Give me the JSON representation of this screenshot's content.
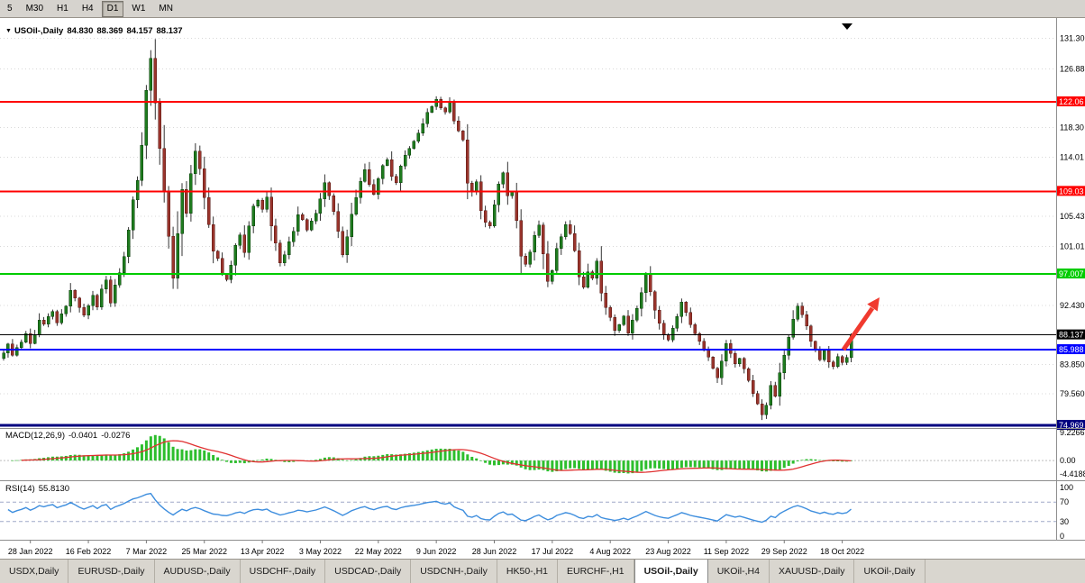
{
  "toolbar": {
    "timeframes": [
      {
        "label": "5",
        "active": false
      },
      {
        "label": "M30",
        "active": false
      },
      {
        "label": "H1",
        "active": false
      },
      {
        "label": "H4",
        "active": false
      },
      {
        "label": "D1",
        "active": true
      },
      {
        "label": "W1",
        "active": false
      },
      {
        "label": "MN",
        "active": false
      }
    ]
  },
  "chart": {
    "collapse_icon": "▼",
    "title_symbol": "USOil-,Daily",
    "ohlc": {
      "open": "84.830",
      "high": "88.369",
      "low": "84.157",
      "close": "88.137"
    }
  },
  "chart_data": {
    "type": "candlestick",
    "symbol": "USOil-,Daily",
    "period": "Daily",
    "ylim": [
      74.7,
      134.1
    ],
    "closes": [
      85.5,
      86.8,
      85.2,
      86.3,
      87.1,
      88.3,
      86.9,
      88.2,
      90.3,
      89.7,
      90.8,
      91.5,
      89.9,
      91.2,
      92.3,
      94.6,
      93.5,
      92.1,
      91.0,
      92.4,
      93.9,
      92.2,
      94.8,
      96.1,
      92.8,
      95.4,
      97.2,
      99.5,
      103.4,
      107.8,
      110.6,
      115.7,
      123.7,
      128.4,
      121.9,
      115.3,
      109.1,
      102.5,
      96.4,
      102.9,
      109.3,
      105.8,
      111.6,
      114.9,
      112.3,
      108.1,
      104.2,
      100.3,
      99.3,
      97.0,
      96.2,
      98.3,
      101.2,
      102.7,
      100.1,
      104.0,
      106.9,
      107.7,
      106.4,
      108.2,
      104.0,
      101.5,
      98.6,
      99.8,
      101.7,
      103.2,
      105.6,
      104.9,
      103.4,
      104.7,
      105.8,
      107.9,
      110.3,
      108.4,
      106.1,
      103.2,
      99.8,
      102.4,
      105.7,
      108.1,
      110.5,
      112.2,
      110.0,
      108.6,
      110.9,
      112.8,
      113.6,
      111.2,
      110.3,
      112.7,
      114.3,
      115.3,
      116.3,
      117.5,
      118.9,
      120.5,
      121.4,
      122.4,
      121.2,
      120.6,
      122.0,
      119.3,
      117.8,
      116.5,
      110.2,
      108.9,
      110.4,
      106.2,
      104.5,
      104.0,
      107.1,
      110.1,
      111.7,
      108.4,
      108.9,
      104.8,
      99.6,
      98.4,
      100.2,
      102.6,
      104.1,
      99.9,
      95.9,
      97.5,
      100.7,
      102.4,
      104.2,
      102.9,
      100.4,
      96.6,
      95.1,
      97.3,
      96.4,
      98.9,
      94.2,
      92.1,
      90.7,
      88.8,
      89.6,
      90.9,
      88.4,
      90.3,
      92.0,
      94.3,
      96.9,
      94.4,
      91.7,
      89.8,
      88.2,
      87.4,
      89.1,
      90.8,
      92.9,
      91.4,
      89.6,
      88.3,
      87.2,
      86.1,
      84.9,
      83.3,
      81.9,
      84.3,
      86.9,
      85.4,
      83.9,
      84.7,
      83.2,
      81.5,
      79.6,
      78.1,
      76.5,
      77.9,
      80.8,
      79.2,
      82.6,
      85.2,
      87.8,
      90.4,
      92.3,
      91.1,
      89.4,
      87.2,
      85.9,
      84.5,
      85.8,
      84.2,
      83.5,
      85.0,
      84.1,
      84.83,
      88.137
    ],
    "last_ohlc": [
      84.83,
      88.369,
      84.157,
      88.137
    ],
    "y_ticks": [
      {
        "price": 131.3,
        "label": "131.30"
      },
      {
        "price": 126.88,
        "label": "126.88"
      },
      {
        "price": 118.3,
        "label": "118.30"
      },
      {
        "price": 114.01,
        "label": "114.01"
      },
      {
        "price": 105.43,
        "label": "105.43"
      },
      {
        "price": 101.01,
        "label": "101.01"
      },
      {
        "price": 92.43,
        "label": "92.430"
      },
      {
        "price": 83.85,
        "label": "83.850"
      },
      {
        "price": 79.56,
        "label": "79.560"
      }
    ],
    "levels": [
      {
        "price": 122.06,
        "label": "122.06",
        "color": "#FF0000",
        "width": 2
      },
      {
        "price": 109.03,
        "label": "109.03",
        "color": "#FF0000",
        "width": 2
      },
      {
        "price": 97.007,
        "label": "97.007",
        "color": "#00CC00",
        "width": 2
      },
      {
        "price": 88.137,
        "label": "88.137",
        "color": "#000000",
        "width": 1
      },
      {
        "price": 85.988,
        "label": "85.988",
        "color": "#0000FF",
        "width": 2
      },
      {
        "price": 74.969,
        "label": "74.969",
        "color": "#000080",
        "width": 3
      }
    ],
    "x_labels": [
      {
        "day": 6,
        "label": "28 Jan 2022"
      },
      {
        "day": 19,
        "label": "16 Feb 2022"
      },
      {
        "day": 32,
        "label": "7 Mar 2022"
      },
      {
        "day": 45,
        "label": "25 Mar 2022"
      },
      {
        "day": 58,
        "label": "13 Apr 2022"
      },
      {
        "day": 71,
        "label": "3 May 2022"
      },
      {
        "day": 84,
        "label": "22 May 2022"
      },
      {
        "day": 97,
        "label": "9 Jun 2022"
      },
      {
        "day": 110,
        "label": "28 Jun 2022"
      },
      {
        "day": 123,
        "label": "17 Jul 2022"
      },
      {
        "day": 136,
        "label": "4 Aug 2022"
      },
      {
        "day": 149,
        "label": "23 Aug 2022"
      },
      {
        "day": 162,
        "label": "11 Sep 2022"
      },
      {
        "day": 175,
        "label": "29 Sep 2022"
      },
      {
        "day": 188,
        "label": "18 Oct 2022"
      }
    ],
    "colors": {
      "up": "#1E7B1E",
      "up_border": "#0A3D0A",
      "down": "#99342C",
      "down_border": "#571712",
      "wick": "#333333",
      "grid": "#D8D8D8",
      "panel_sep": "#8E8E8E",
      "axis_text": "#000000"
    },
    "indicators": {
      "macd": {
        "name": "MACD(12,26,9)",
        "value_main": "-0.0401",
        "value_signal": "-0.0276",
        "fast": 12,
        "slow": 26,
        "signal": 9,
        "scale_top": "9.2266",
        "scale_zero": "0.00",
        "scale_bottom": "-4.4188",
        "hist_color": "#2DBE2D",
        "signal_color": "#E03131"
      },
      "rsi": {
        "name": "RSI(14)",
        "value": "55.8130",
        "period": 14,
        "scale": [
          "100",
          "70",
          "30",
          "0"
        ],
        "upper": 70,
        "lower": 30,
        "line_color": "#3E8EDE",
        "level_color": "#9FA8C8"
      }
    },
    "annotation_arrow": {
      "color": "#F03A2F"
    }
  },
  "tabs": [
    {
      "label": "USDX,Daily",
      "active": false
    },
    {
      "label": "EURUSD-,Daily",
      "active": false
    },
    {
      "label": "AUDUSD-,Daily",
      "active": false
    },
    {
      "label": "USDCHF-,Daily",
      "active": false
    },
    {
      "label": "USDCAD-,Daily",
      "active": false
    },
    {
      "label": "USDCNH-,Daily",
      "active": false
    },
    {
      "label": "HK50-,H1",
      "active": false
    },
    {
      "label": "EURCHF-,H1",
      "active": false
    },
    {
      "label": "USOil-,Daily",
      "active": true
    },
    {
      "label": "UKOil-,H4",
      "active": false
    },
    {
      "label": "XAUUSD-,Daily",
      "active": false
    },
    {
      "label": "UKOil-,Daily",
      "active": false
    }
  ]
}
